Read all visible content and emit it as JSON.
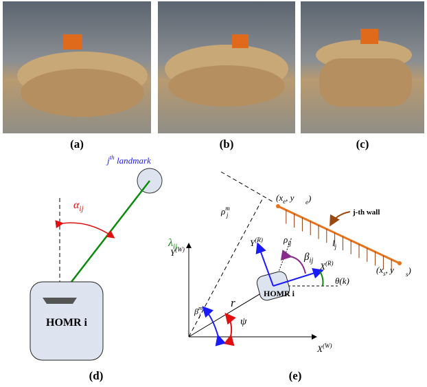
{
  "photos": {
    "a": {
      "caption": "(a)"
    },
    "b": {
      "caption": "(b)"
    },
    "c": {
      "caption": "(c)"
    }
  },
  "diagram_d": {
    "caption": "(d)",
    "landmark": {
      "base": "j",
      "sup": "th",
      "rest": " landmark"
    },
    "alpha": {
      "base": "α",
      "sub": "ij"
    },
    "lambda": {
      "base": "λ",
      "sub": "ij"
    },
    "robot": {
      "base": "HOMR ",
      "rest": "i"
    }
  },
  "diagram_e": {
    "caption": "(e)",
    "end_point": {
      "base": "(x",
      "sub": "e",
      "rest": ", y"
    },
    "end_point_y": {
      "sub": "e",
      "rest": ")"
    },
    "wall": "j-th wall",
    "rho": {
      "base": "ρ",
      "sub": "ij"
    },
    "length": {
      "base": "l",
      "sub": "j"
    },
    "beta": {
      "base": "β",
      "sub": "ij"
    },
    "yr": {
      "base": "Y",
      "sup": "(R)"
    },
    "xr": {
      "base": "X",
      "sup": "(R)"
    },
    "yw": {
      "base": "Y",
      "sup": "(W)"
    },
    "xw": {
      "base": "X",
      "sup": "(W)"
    },
    "rho_m": {
      "base": "ρ",
      "sub": "j",
      "sup": "m"
    },
    "theta": "θ(k)",
    "robot": {
      "base": "HOMR ",
      "rest": "i"
    },
    "start_point": {
      "base": "(x",
      "sub": "s",
      "rest": ", y"
    },
    "start_point_y": {
      "sub": "s",
      "rest": ")"
    },
    "r": "r",
    "psi": "ψ",
    "beta_m": {
      "base": "β",
      "sub": "j",
      "sup": "m"
    }
  }
}
